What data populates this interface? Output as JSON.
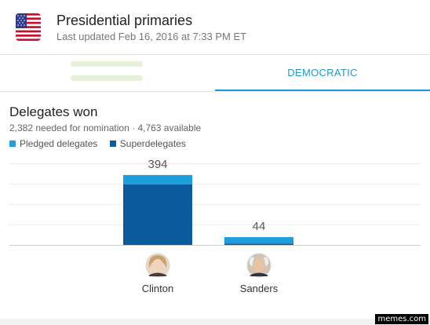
{
  "header": {
    "title": "Presidential primaries",
    "updated": "Last updated Feb 16, 2016 at 7:33 PM ET",
    "flag_icon": "us-flag-icon"
  },
  "tabs": {
    "democratic_label": "DEMOCRATIC",
    "accent_color": "#1a9ad6"
  },
  "section": {
    "title": "Delegates won",
    "subtitle": "2,382 needed for nomination · 4,763 available"
  },
  "legend": {
    "pledged_label": "Pledged delegates",
    "super_label": "Superdelegates",
    "pledged_color": "#1e9fdd",
    "super_color": "#0a5a9e"
  },
  "chart_data": {
    "type": "bar",
    "stacked": true,
    "categories": [
      "Clinton",
      "Sanders"
    ],
    "totals": [
      394,
      44
    ],
    "series": [
      {
        "name": "Pledged delegates",
        "values": [
          52,
          36
        ]
      },
      {
        "name": "Superdelegates",
        "values": [
          342,
          8
        ]
      }
    ],
    "ylim": [
      0,
      460
    ],
    "grid": true
  },
  "candidates": [
    {
      "name": "Clinton",
      "avatar_icon": "clinton-avatar"
    },
    {
      "name": "Sanders",
      "avatar_icon": "sanders-avatar"
    }
  ],
  "watermark": "memes.com"
}
